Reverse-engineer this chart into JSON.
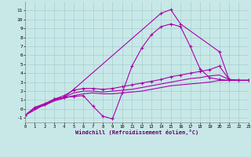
{
  "xlabel": "Windchill (Refroidissement éolien,°C)",
  "bg_color": "#c8e8e8",
  "line_color": "#aa00aa",
  "grid_color": "#a0c8c8",
  "xlim": [
    0,
    23
  ],
  "ylim": [
    -1.5,
    12.0
  ],
  "xticks": [
    0,
    1,
    2,
    3,
    4,
    5,
    6,
    7,
    8,
    9,
    10,
    11,
    12,
    13,
    14,
    15,
    16,
    17,
    18,
    19,
    20,
    21,
    22,
    23
  ],
  "yticks": [
    -1,
    0,
    1,
    2,
    3,
    4,
    5,
    6,
    7,
    8,
    9,
    10,
    11
  ],
  "line_jagged_x": [
    0,
    1,
    2,
    3,
    4,
    5,
    6,
    7,
    8,
    9,
    10,
    11,
    12,
    13,
    14,
    15,
    16,
    17,
    18,
    19,
    20,
    21,
    22,
    23
  ],
  "line_jagged_y": [
    -0.7,
    0.1,
    0.5,
    1.1,
    1.3,
    1.4,
    1.5,
    0.3,
    -0.8,
    -1.1,
    1.8,
    4.8,
    6.8,
    8.3,
    9.2,
    9.5,
    9.2,
    7.0,
    4.5,
    3.5,
    3.3,
    3.2,
    3.2,
    3.2
  ],
  "line_peak_x": [
    0,
    3,
    4,
    5,
    14,
    15,
    16,
    20,
    21,
    22,
    23
  ],
  "line_peak_y": [
    -0.7,
    1.1,
    1.3,
    2.2,
    10.7,
    11.1,
    9.5,
    6.4,
    3.3,
    3.2,
    3.2
  ],
  "line_med1_x": [
    0,
    1,
    2,
    3,
    4,
    5,
    6,
    7,
    8,
    9,
    10,
    11,
    12,
    13,
    14,
    15,
    16,
    17,
    18,
    19,
    20,
    21,
    22,
    23
  ],
  "line_med1_y": [
    -0.7,
    0.2,
    0.6,
    1.1,
    1.5,
    2.1,
    2.3,
    2.3,
    2.2,
    2.3,
    2.5,
    2.7,
    2.9,
    3.1,
    3.3,
    3.6,
    3.8,
    4.0,
    4.2,
    4.4,
    4.8,
    3.3,
    3.2,
    3.2
  ],
  "line_med2_x": [
    0,
    1,
    2,
    3,
    4,
    5,
    6,
    7,
    8,
    9,
    10,
    11,
    12,
    13,
    14,
    15,
    16,
    17,
    18,
    19,
    20,
    21,
    22,
    23
  ],
  "line_med2_y": [
    -0.7,
    0.1,
    0.5,
    1.0,
    1.3,
    1.8,
    2.0,
    2.0,
    1.9,
    2.0,
    2.1,
    2.2,
    2.4,
    2.6,
    2.8,
    3.0,
    3.2,
    3.4,
    3.5,
    3.7,
    3.8,
    3.3,
    3.2,
    3.2
  ],
  "line_low_x": [
    0,
    1,
    2,
    3,
    4,
    5,
    6,
    7,
    8,
    9,
    10,
    11,
    12,
    13,
    14,
    15,
    16,
    17,
    18,
    19,
    20,
    21,
    22,
    23
  ],
  "line_low_y": [
    -0.7,
    0.1,
    0.4,
    0.9,
    1.2,
    1.5,
    1.7,
    1.8,
    1.7,
    1.7,
    1.8,
    1.9,
    2.0,
    2.2,
    2.4,
    2.6,
    2.7,
    2.8,
    2.9,
    3.0,
    3.2,
    3.2,
    3.2,
    3.2
  ]
}
